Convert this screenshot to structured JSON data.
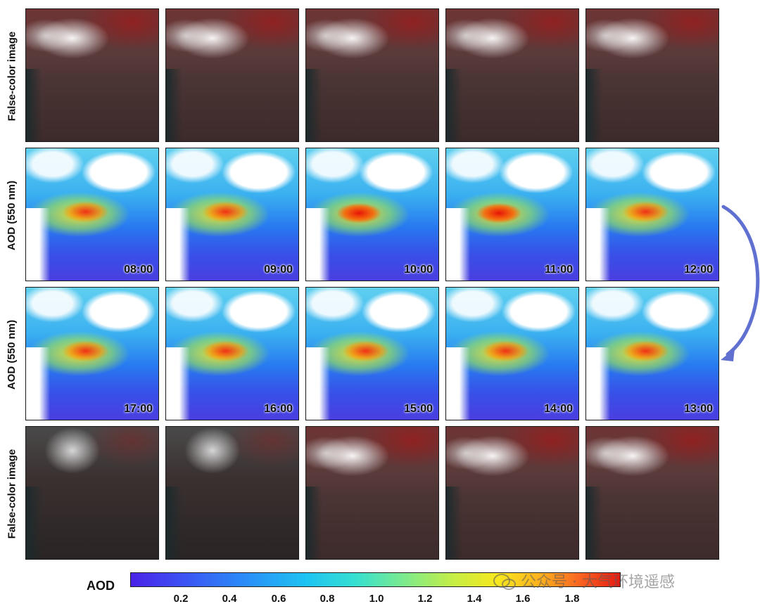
{
  "rows": [
    {
      "label": "False-color image",
      "type": "false-color",
      "times": [
        "",
        "",
        "",
        "",
        ""
      ]
    },
    {
      "label": "AOD (550 nm)",
      "type": "aod",
      "times": [
        "08:00",
        "09:00",
        "10:00",
        "11:00",
        "12:00"
      ]
    },
    {
      "label": "AOD (550 nm)",
      "type": "aod",
      "times": [
        "17:00",
        "16:00",
        "15:00",
        "14:00",
        "13:00"
      ]
    },
    {
      "label": "False-color image",
      "type": "false-color",
      "times": [
        "",
        "",
        "",
        "",
        ""
      ]
    }
  ],
  "colorbar": {
    "label": "AOD",
    "ticks": [
      "0.2",
      "0.4",
      "0.6",
      "0.8",
      "1.0",
      "1.2",
      "1.4",
      "1.6",
      "1.8"
    ]
  },
  "watermark": {
    "text": "公众号 · 大气环境遥感"
  },
  "colors": {
    "arrow": "#6070d0"
  }
}
